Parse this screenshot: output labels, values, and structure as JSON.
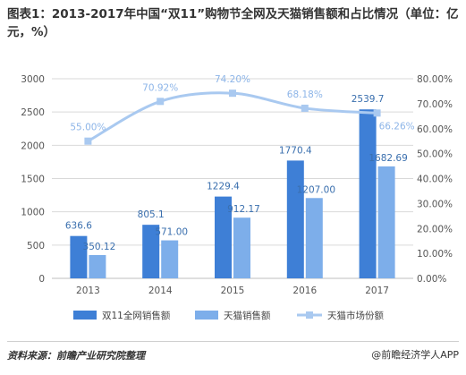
{
  "title": "图表1：2013-2017年中国“双11”购物节全网及天猫销售额和占比情况（单位：亿元，%）",
  "footer": {
    "source": "资料来源：前瞻产业研究院整理",
    "brand": "@前瞻经济学人APP"
  },
  "colors": {
    "series_total": "#3e7fd6",
    "series_tmall": "#7daeea",
    "series_share": "#a9c9f0",
    "grid": "#d9d9d9"
  },
  "chart_data": {
    "type": "bar",
    "categories": [
      "2013",
      "2014",
      "2015",
      "2016",
      "2017"
    ],
    "ylim": [
      0,
      3000
    ],
    "yticks": [
      "0",
      "500",
      "1000",
      "1500",
      "2000",
      "2500",
      "3000"
    ],
    "y2lim": [
      0,
      80
    ],
    "y2ticks": [
      "0.00%",
      "10.00%",
      "20.00%",
      "30.00%",
      "40.00%",
      "50.00%",
      "60.00%",
      "70.00%",
      "80.00%"
    ],
    "series": [
      {
        "name": "双11全网销售额",
        "kind": "bar",
        "axis": "left",
        "values": [
          636.6,
          805.1,
          1229.4,
          1770.4,
          2539.7
        ],
        "labels": [
          "636.6",
          "805.1",
          "1229.4",
          "1770.4",
          "2539.7"
        ]
      },
      {
        "name": "天猫销售额",
        "kind": "bar",
        "axis": "left",
        "values": [
          350.12,
          571.0,
          912.17,
          1207.0,
          1682.69
        ],
        "labels": [
          "350.12",
          "571.00",
          "912.17",
          "1207.00",
          "1682.69"
        ]
      },
      {
        "name": "天猫市场份额",
        "kind": "line",
        "axis": "right",
        "values": [
          55.0,
          70.92,
          74.2,
          68.18,
          66.26
        ],
        "labels": [
          "55.00%",
          "70.92%",
          "74.20%",
          "68.18%",
          "66.26%"
        ]
      }
    ],
    "grid": true,
    "legend_position": "bottom"
  }
}
